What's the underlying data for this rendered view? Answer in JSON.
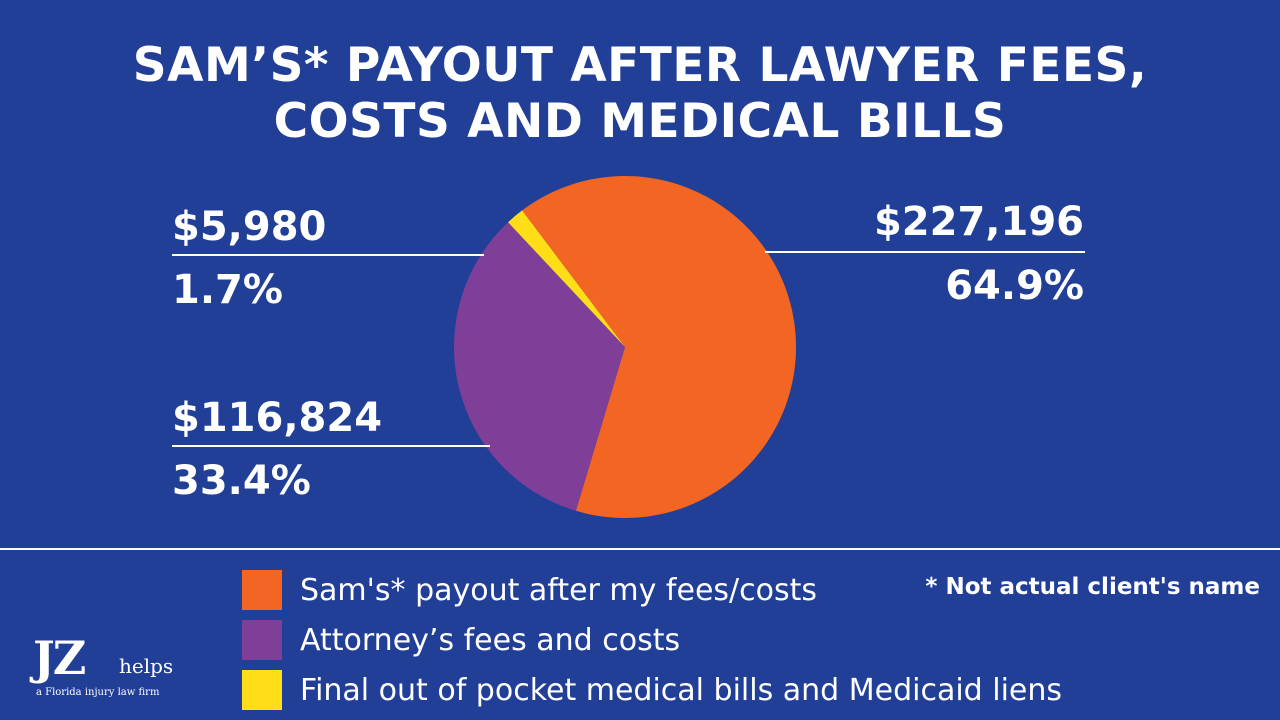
{
  "chart_data": {
    "type": "pie",
    "title_line1": "SAM’S* PAYOUT AFTER LAWYER FEES,",
    "title_line2": "COSTS AND MEDICAL BILLS",
    "slices": [
      {
        "label": "Sam's* payout after my fees/costs",
        "amount": "$227,196",
        "value": 227196,
        "percent": "64.9%",
        "color": "#f26522"
      },
      {
        "label": "Attorney’s fees and costs",
        "amount": "$116,824",
        "value": 116824,
        "percent": "33.4%",
        "color": "#7f3f98"
      },
      {
        "label": "Final out of pocket medical bills and Medicaid liens",
        "amount": "$5,980",
        "value": 5980,
        "percent": "1.7%",
        "color": "#ffde17"
      }
    ],
    "footnote": "* Not actual client's name"
  },
  "logo": {
    "mark": "JZ",
    "word": "helps",
    "tagline": "a Florida injury law firm"
  },
  "colors": {
    "background": "#223f98",
    "text": "#ffffff"
  }
}
